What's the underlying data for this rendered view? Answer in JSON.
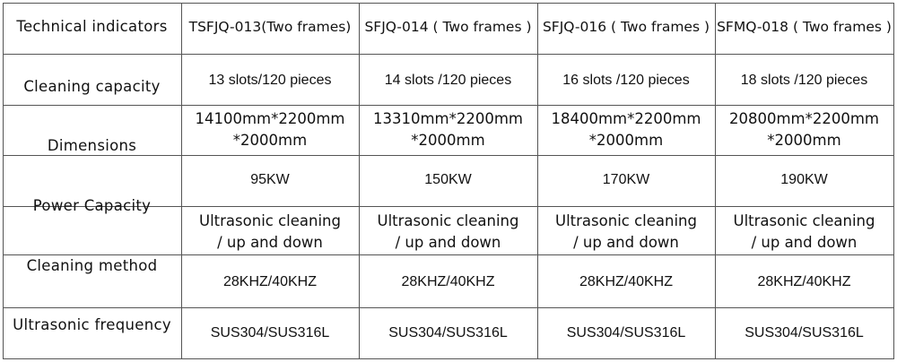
{
  "header": [
    "Technical indicators",
    "TSFJQ-013(Two frames)",
    "SFJQ-014 ( Two frames )",
    "SFJQ-016 ( Two frames )",
    "SFMQ-018 ( Two frames )"
  ],
  "row_labels": [
    "Cleaning capacity",
    "Dimensions",
    "Power Capacity",
    "Cleaning method",
    "Ultrasonic frequency"
  ],
  "models": [
    {
      "capacity": "13 slots/120 pieces",
      "dim1": "14100mm*2200mm",
      "dim2": "*2000mm",
      "power": "95KW",
      "method1": "Ultrasonic cleaning",
      "method2": "/ up and down",
      "freq": "28KHZ/40KHZ",
      "material": "SUS304/SUS316L"
    },
    {
      "capacity": "14 slots /120 pieces",
      "dim1": "13310mm*2200mm",
      "dim2": "*2000mm",
      "power": "150KW",
      "method1": "Ultrasonic cleaning",
      "method2": "/ up and down",
      "freq": "28KHZ/40KHZ",
      "material": "SUS304/SUS316L"
    },
    {
      "capacity": "16 slots /120 pieces",
      "dim1": "18400mm*2200mm",
      "dim2": "*2000mm",
      "power": "170KW",
      "method1": "Ultrasonic cleaning",
      "method2": "/ up and down",
      "freq": "28KHZ/40KHZ",
      "material": "SUS304/SUS316L"
    },
    {
      "capacity": "18 slots /120 pieces",
      "dim1": "20800mm*2200mm",
      "dim2": "*2000mm",
      "power": "190KW",
      "method1": "Ultrasonic cleaning",
      "method2": "/ up and down",
      "freq": "28KHZ/40KHZ",
      "material": "SUS304/SUS316L"
    }
  ]
}
